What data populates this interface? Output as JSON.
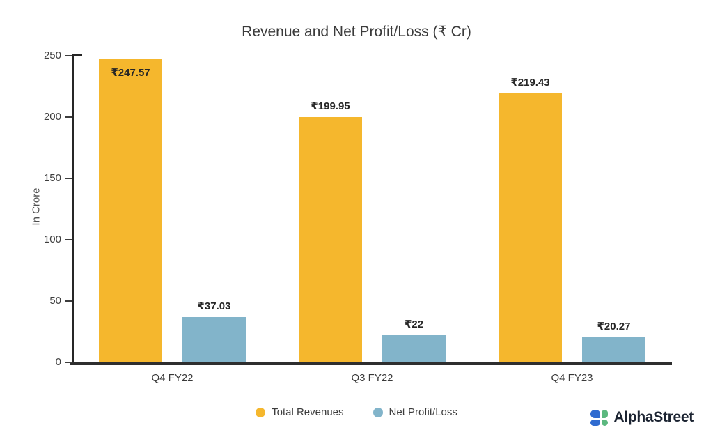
{
  "title": "Revenue and Net Profit/Loss (₹ Cr)",
  "chart_data": {
    "type": "bar",
    "categories": [
      "Q4 FY22",
      "Q3 FY22",
      "Q4 FY23"
    ],
    "series": [
      {
        "name": "Total Revenues",
        "color": "#F5B72D",
        "values": [
          247.57,
          199.95,
          219.43
        ],
        "labels": [
          "₹247.57",
          "₹199.95",
          "₹219.43"
        ]
      },
      {
        "name": "Net Profit/Loss",
        "color": "#82B4CA",
        "values": [
          37.03,
          22,
          20.27
        ],
        "labels": [
          "₹37.03",
          "₹22",
          "₹20.27"
        ]
      }
    ],
    "ylabel": "In Crore",
    "ylim": [
      0,
      250
    ],
    "yticks": [
      0,
      50,
      100,
      150,
      200,
      250
    ],
    "grid": false,
    "legend_position": "bottom"
  },
  "branding": {
    "logo_text": "AlphaStreet",
    "logo_blue": "#2F6BD0",
    "logo_green": "#5CB87F"
  }
}
